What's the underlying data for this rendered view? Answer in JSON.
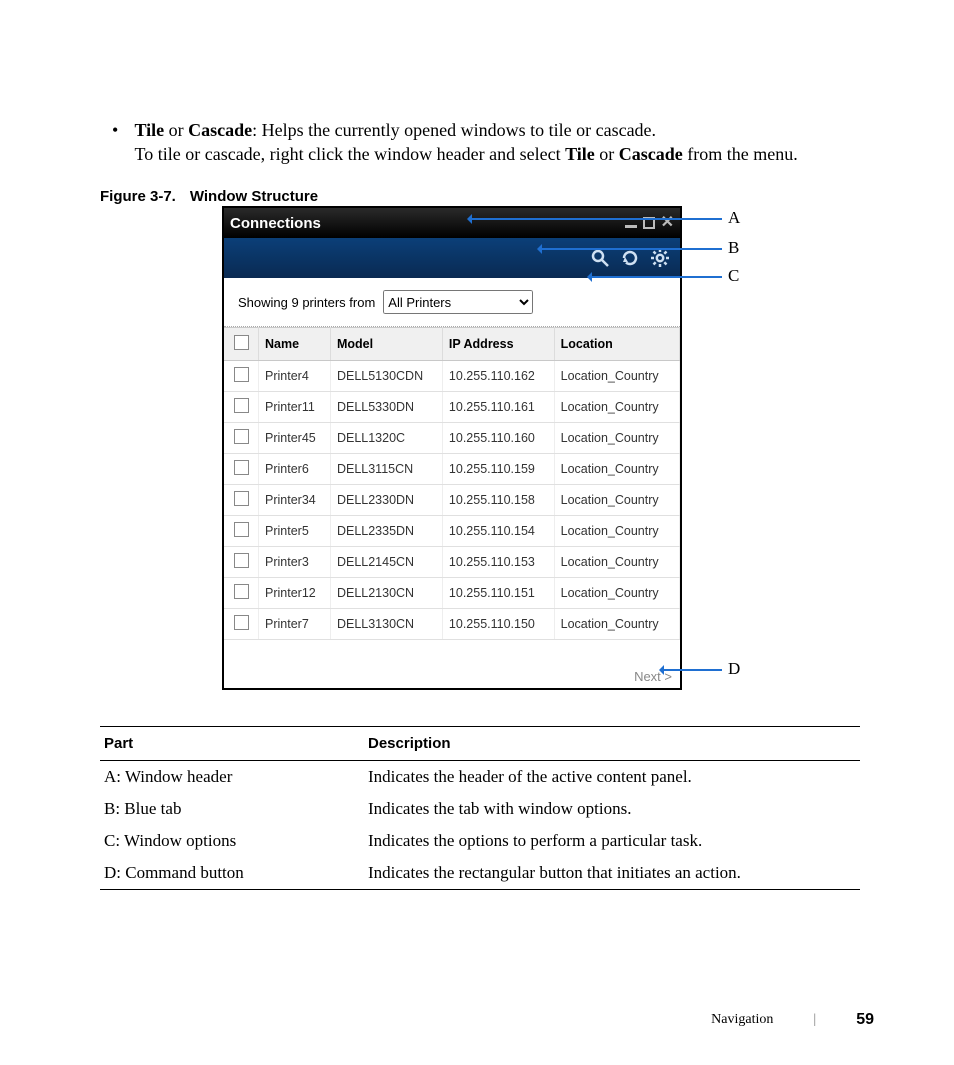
{
  "body": {
    "bullet": "•",
    "line1_a": "Tile",
    "line1_b": " or ",
    "line1_c": "Cascade",
    "line1_d": ": Helps the currently opened windows to tile or cascade.",
    "line2_a": "To tile or cascade, right click the window header and select ",
    "line2_b": "Tile",
    "line2_c": " or ",
    "line2_d": "Cascade",
    "line2_e": " from the menu."
  },
  "figcaption": {
    "num": "Figure 3-7.",
    "title": "Window Structure"
  },
  "window": {
    "title": "Connections",
    "filter_text": "Showing 9 printers from",
    "filter_value": "All Printers",
    "next_label": "Next >",
    "columns": {
      "c1": "Name",
      "c2": "Model",
      "c3": "IP Address",
      "c4": "Location"
    },
    "rows": [
      {
        "name": "Printer4",
        "model": "DELL5130CDN",
        "ip": "10.255.110.162",
        "loc": "Location_Country"
      },
      {
        "name": "Printer11",
        "model": "DELL5330DN",
        "ip": "10.255.110.161",
        "loc": "Location_Country"
      },
      {
        "name": "Printer45",
        "model": "DELL1320C",
        "ip": "10.255.110.160",
        "loc": "Location_Country"
      },
      {
        "name": "Printer6",
        "model": "DELL3115CN",
        "ip": "10.255.110.159",
        "loc": "Location_Country"
      },
      {
        "name": "Printer34",
        "model": "DELL2330DN",
        "ip": "10.255.110.158",
        "loc": "Location_Country"
      },
      {
        "name": "Printer5",
        "model": "DELL2335DN",
        "ip": "10.255.110.154",
        "loc": "Location_Country"
      },
      {
        "name": "Printer3",
        "model": "DELL2145CN",
        "ip": "10.255.110.153",
        "loc": "Location_Country"
      },
      {
        "name": "Printer12",
        "model": "DELL2130CN",
        "ip": "10.255.110.151",
        "loc": "Location_Country"
      },
      {
        "name": "Printer7",
        "model": "DELL3130CN",
        "ip": "10.255.110.150",
        "loc": "Location_Country"
      }
    ]
  },
  "callouts": {
    "A": "A",
    "B": "B",
    "C": "C",
    "D": "D"
  },
  "parts": {
    "h1": "Part",
    "h2": "Description",
    "r": [
      {
        "p": "A: Window header",
        "d": "Indicates the header of the active content panel."
      },
      {
        "p": "B: Blue tab",
        "d": "Indicates the tab with window options."
      },
      {
        "p": "C: Window options",
        "d": "Indicates the options to perform a particular task."
      },
      {
        "p": "D: Command button",
        "d": "Indicates the rectangular button that initiates an action."
      }
    ]
  },
  "footer": {
    "section": "Navigation",
    "page": "59"
  }
}
